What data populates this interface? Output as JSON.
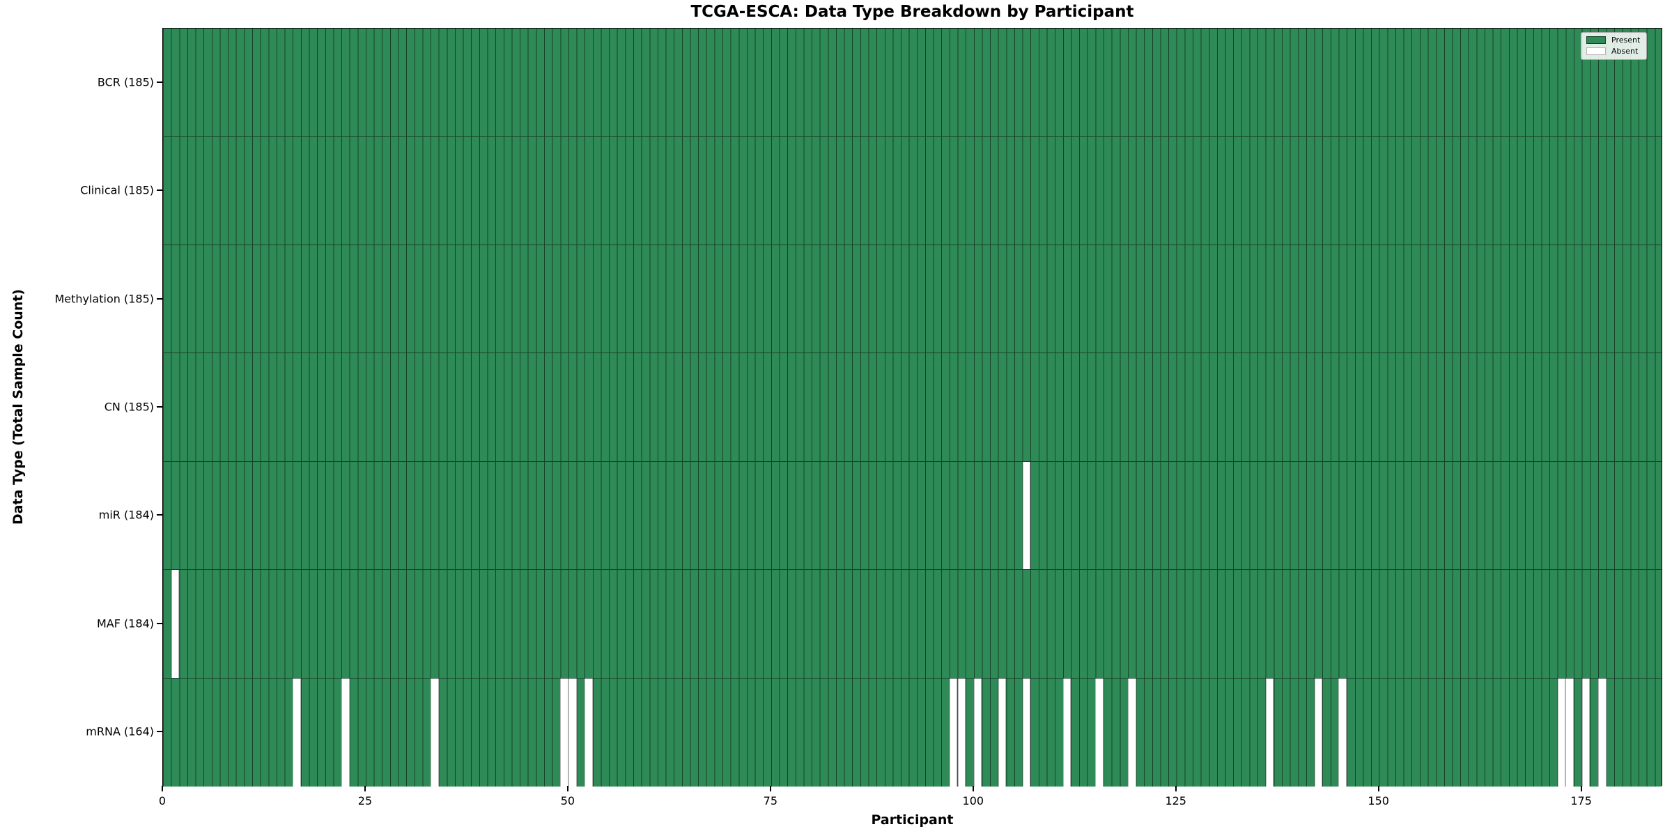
{
  "title": "TCGA-ESCA: Data Type Breakdown by Participant",
  "xlabel": "Participant",
  "ylabel": "Data Type (Total Sample Count)",
  "legend": {
    "present": "Present",
    "absent": "Absent"
  },
  "colors": {
    "present_fill": "#2E8B57",
    "absent_fill": "#FFFFFF",
    "bar_edge": "#17422A",
    "absent_edge": "#B5B5B5",
    "axis": "#000000"
  },
  "chart_data": {
    "type": "heatmap",
    "title": "TCGA-ESCA: Data Type Breakdown by Participant",
    "xlabel": "Participant",
    "ylabel": "Data Type (Total Sample Count)",
    "n_participants": 185,
    "xlim": [
      0,
      185
    ],
    "x_ticks": [
      0,
      25,
      50,
      75,
      100,
      125,
      150,
      175
    ],
    "legend_entries": [
      "Present",
      "Absent"
    ],
    "legend_position": "upper right",
    "grid": false,
    "rows": [
      {
        "name": "BCR",
        "label": "BCR (185)",
        "total_present": 185,
        "absent_participants": []
      },
      {
        "name": "Clinical",
        "label": "Clinical (185)",
        "total_present": 185,
        "absent_participants": []
      },
      {
        "name": "Methylation",
        "label": "Methylation (185)",
        "total_present": 185,
        "absent_participants": []
      },
      {
        "name": "CN",
        "label": "CN (185)",
        "total_present": 185,
        "absent_participants": []
      },
      {
        "name": "miR",
        "label": "miR (184)",
        "total_present": 184,
        "absent_participants": [
          106
        ]
      },
      {
        "name": "MAF",
        "label": "MAF (184)",
        "total_present": 184,
        "absent_participants": [
          1
        ]
      },
      {
        "name": "mRNA",
        "label": "mRNA (164)",
        "total_present": 164,
        "absent_participants": [
          16,
          22,
          33,
          49,
          50,
          52,
          97,
          98,
          100,
          103,
          106,
          111,
          115,
          119,
          136,
          142,
          145,
          172,
          173,
          175,
          177
        ]
      }
    ]
  }
}
